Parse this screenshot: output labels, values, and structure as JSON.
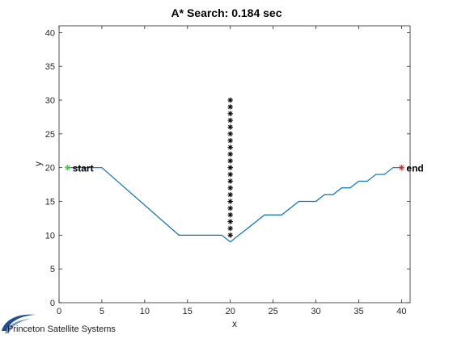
{
  "chart_data": {
    "type": "line",
    "title": "A* Search: 0.184 sec",
    "xlabel": "x",
    "ylabel": "y",
    "xlim": [
      0,
      41
    ],
    "ylim": [
      0,
      41
    ],
    "xticks": [
      0,
      5,
      10,
      15,
      20,
      25,
      30,
      35,
      40
    ],
    "yticks": [
      0,
      5,
      10,
      15,
      20,
      25,
      30,
      35,
      40
    ],
    "grid": false,
    "box": true,
    "path": {
      "color": "#0072BD",
      "x": [
        1,
        5,
        14,
        19,
        20,
        21,
        22,
        23,
        24,
        25,
        26,
        27,
        28,
        29,
        30,
        31,
        32,
        33,
        34,
        35,
        36,
        37,
        38,
        39,
        40
      ],
      "y": [
        20,
        20,
        10,
        10,
        9,
        10,
        11,
        12,
        13,
        13,
        13,
        14,
        15,
        15,
        15,
        16,
        16,
        17,
        17,
        18,
        18,
        19,
        19,
        20,
        20
      ]
    },
    "obstacles": {
      "marker": "*",
      "color": "#000000",
      "x": [
        20,
        20,
        20,
        20,
        20,
        20,
        20,
        20,
        20,
        20,
        20,
        20,
        20,
        20,
        20,
        20,
        20,
        20,
        20,
        20,
        20
      ],
      "y": [
        10,
        11,
        12,
        13,
        14,
        15,
        16,
        17,
        18,
        19,
        20,
        21,
        22,
        23,
        24,
        25,
        26,
        27,
        28,
        29,
        30
      ]
    },
    "start": {
      "x": 1,
      "y": 20,
      "label": "start",
      "color": "#22dd22"
    },
    "end": {
      "x": 40,
      "y": 20,
      "label": "end",
      "color": "#ee2222"
    }
  },
  "branding": {
    "text": "Princeton Satellite Systems",
    "logo_color": "#1f4e96"
  }
}
